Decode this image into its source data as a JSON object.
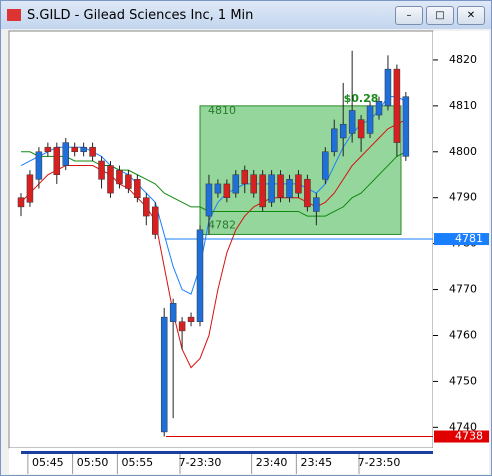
{
  "window_title": "S.GILD - Gilead Sciences Inc, 1 Min",
  "chart_data": {
    "type": "candlestick",
    "categories": [
      null,
      null,
      null,
      "05:45",
      null,
      null,
      null,
      null,
      "05:50",
      null,
      null,
      null,
      null,
      "05:55",
      null,
      null,
      null,
      null,
      null,
      null,
      "7-23:30",
      null,
      null,
      null,
      null,
      null,
      null,
      null,
      "23:40",
      null,
      null,
      null,
      null,
      "23:45",
      null,
      null,
      null,
      null,
      null,
      null,
      "7-23:50",
      null,
      null,
      null
    ],
    "open": [
      4790,
      4795,
      4794,
      4801,
      4801,
      4797,
      4801,
      4800,
      4801,
      4798,
      4797,
      4796,
      4795,
      4794,
      4790,
      4788,
      4739,
      4763,
      4763,
      4764,
      4763,
      4786,
      4791,
      4793,
      4791,
      4796,
      4795,
      4795,
      4789,
      4795,
      4790,
      4795,
      4794,
      4787,
      4794,
      4800,
      4803,
      4804,
      4807,
      4804,
      4808,
      4810,
      4818,
      4799
    ],
    "high": [
      4791,
      4796,
      4801,
      4802,
      4802,
      4803,
      4802,
      4802,
      4802,
      4799,
      4798,
      4797,
      4796,
      4795,
      4791,
      4789,
      4766,
      4768,
      4764,
      4765,
      4784,
      4795,
      4794,
      4794,
      4796,
      4797,
      4796,
      4796,
      4796,
      4796,
      4795,
      4796,
      4795,
      4791,
      4801,
      4807,
      4815,
      4822,
      4808,
      4811,
      4812,
      4821,
      4819,
      4813
    ],
    "low": [
      4786,
      4788,
      4792,
      4799,
      4793,
      4796,
      4799,
      4799,
      4798,
      4792,
      4790,
      4792,
      4791,
      4789,
      4784,
      4781,
      4738,
      4742,
      4757,
      4762,
      4762,
      4782,
      4790,
      4789,
      4790,
      4791,
      4790,
      4787,
      4788,
      4789,
      4789,
      4790,
      4787,
      4784,
      4793,
      4799,
      4799,
      4802,
      4800,
      4803,
      4807,
      4809,
      4799,
      4798
    ],
    "close": [
      4788,
      4789,
      4800,
      4800,
      4795,
      4802,
      4800,
      4801,
      4799,
      4794,
      4791,
      4793,
      4792,
      4790,
      4786,
      4782,
      4764,
      4767,
      4761,
      4763,
      4783,
      4793,
      4793,
      4790,
      4795,
      4793,
      4791,
      4788,
      4795,
      4790,
      4794,
      4791,
      4788,
      4790,
      4800,
      4805,
      4806,
      4809,
      4803,
      4810,
      4811,
      4818,
      4802,
      4812
    ],
    "up_color": "#1e6fd9",
    "down_color": "#d92020",
    "lines": [
      {
        "color": "#1a7fff",
        "values": [
          4797,
          4798,
          4799,
          4800,
          4801,
          4801,
          4801,
          4801,
          4800,
          4799,
          4797,
          4796,
          4795,
          4793,
          4791,
          4789,
          4782,
          4775,
          4770,
          4769,
          4775,
          4785,
          4789,
          4791,
          4792,
          4793,
          4793,
          4793,
          4793,
          4793,
          4793,
          4793,
          4792,
          4791,
          4793,
          4797,
          4801,
          4804,
          4806,
          4807,
          4809,
          4812,
          4812,
          4811
        ]
      },
      {
        "color": "#d81010",
        "values": [
          4789,
          4791,
          4793,
          4795,
          4796,
          4797,
          4797,
          4797,
          4797,
          4796,
          4795,
          4793,
          4792,
          4790,
          4788,
          4785,
          4775,
          4765,
          4757,
          4753,
          4755,
          4760,
          4770,
          4778,
          4783,
          4786,
          4788,
          4789,
          4790,
          4790,
          4790,
          4790,
          4789,
          4788,
          4789,
          4791,
          4794,
          4797,
          4799,
          4801,
          4803,
          4805,
          4806,
          4807
        ]
      },
      {
        "color": "#108a10",
        "values": [
          4800,
          4800,
          4799,
          4799,
          4799,
          4799,
          4798,
          4798,
          4798,
          4797,
          4797,
          4796,
          4796,
          4795,
          4794,
          4793,
          4791,
          4790,
          4789,
          4788,
          4788,
          4787,
          4787,
          4787,
          4787,
          4787,
          4787,
          4787,
          4787,
          4787,
          4787,
          4787,
          4786,
          4786,
          4786,
          4787,
          4788,
          4790,
          4791,
          4793,
          4795,
          4797,
          4799,
          4800
        ]
      }
    ],
    "ylim": [
      4735.5,
      4826.3
    ],
    "yticks": [
      4740,
      4750,
      4760,
      4770,
      4780,
      4790,
      4800,
      4810,
      4820
    ],
    "price_lines": [
      {
        "value": 4781,
        "label": "4781",
        "color": "#1a7fff"
      },
      {
        "value": 4738,
        "label": "4738",
        "color": "#e00000"
      }
    ],
    "box": {
      "high": {
        "value": 4810,
        "label": "4810"
      },
      "low": {
        "value": 4782,
        "label": "4782"
      },
      "change": "$0.28",
      "color": "#3cb44b"
    }
  }
}
